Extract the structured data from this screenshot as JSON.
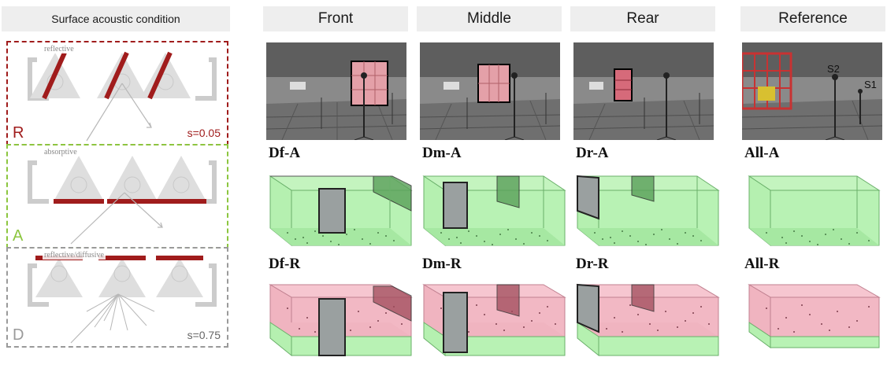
{
  "header": {
    "left_title": "Surface acoustic condition",
    "columns": [
      "Front",
      "Middle",
      "Rear",
      "Reference"
    ]
  },
  "conditions": [
    {
      "letter": "R",
      "small_label": "reflective",
      "s_value": "s=0.05",
      "color": "#a01c1c"
    },
    {
      "letter": "A",
      "small_label": "absorptive",
      "s_value": "",
      "color": "#8cc63f"
    },
    {
      "letter": "D",
      "small_label": "reflective/diffusive",
      "s_value": "s=0.75",
      "color": "#9a9a9a"
    }
  ],
  "photos": {
    "source_labels": [
      "S2",
      "S1"
    ]
  },
  "configurations": {
    "row_a": [
      "Df-A",
      "Dm-A",
      "Dr-A",
      "All-A"
    ],
    "row_r": [
      "Df-R",
      "Dm-R",
      "Dr-R",
      "All-R"
    ]
  },
  "colors": {
    "reflective_red": "#a01c1c",
    "absorptive_green": "#8cc63f",
    "diffusive_gray": "#9a9a9a",
    "room_green": "#b5f0b0",
    "room_pink": "#f0b4c0",
    "header_bg": "#eeeeee"
  }
}
